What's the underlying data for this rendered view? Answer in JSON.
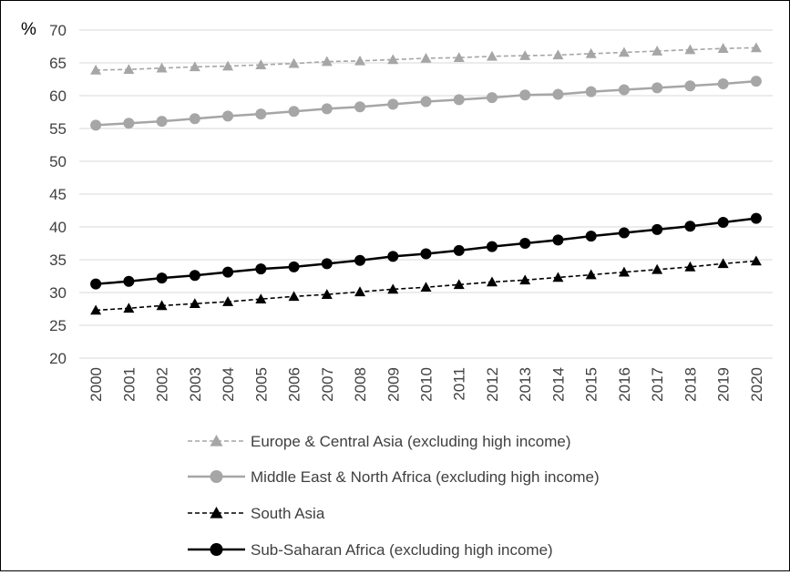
{
  "chart_data": {
    "type": "line",
    "title": "",
    "ylabel": "%",
    "xlabel": "",
    "ylim": [
      20,
      70
    ],
    "yticks": [
      20,
      25,
      30,
      35,
      40,
      45,
      50,
      55,
      60,
      65,
      70
    ],
    "grid": "horizontal",
    "legend_position": "bottom",
    "x": [
      "2000",
      "2001",
      "2002",
      "2003",
      "2004",
      "2005",
      "2006",
      "2007",
      "2008",
      "2009",
      "2010",
      "2011",
      "2012",
      "2013",
      "2014",
      "2015",
      "2016",
      "2017",
      "2018",
      "2019",
      "2020"
    ],
    "series": [
      {
        "name": "Europe & Central Asia (excluding high income)",
        "color": "#a6a6a6",
        "line_style": "dashed",
        "marker": "triangle",
        "values": [
          63.9,
          64.0,
          64.2,
          64.4,
          64.5,
          64.7,
          64.9,
          65.2,
          65.3,
          65.5,
          65.7,
          65.8,
          66.0,
          66.1,
          66.2,
          66.4,
          66.6,
          66.8,
          67.0,
          67.2,
          67.3
        ]
      },
      {
        "name": "Middle East & North Africa (excluding high income)",
        "color": "#a6a6a6",
        "line_style": "solid",
        "marker": "circle",
        "values": [
          55.5,
          55.8,
          56.1,
          56.5,
          56.9,
          57.2,
          57.6,
          58.0,
          58.3,
          58.7,
          59.1,
          59.4,
          59.7,
          60.1,
          60.2,
          60.6,
          60.9,
          61.2,
          61.5,
          61.8,
          62.2
        ]
      },
      {
        "name": "South Asia",
        "color": "#000000",
        "line_style": "dashed",
        "marker": "triangle",
        "values": [
          27.3,
          27.6,
          28.0,
          28.3,
          28.6,
          29.0,
          29.4,
          29.7,
          30.1,
          30.5,
          30.8,
          31.2,
          31.6,
          31.9,
          32.3,
          32.7,
          33.1,
          33.5,
          33.9,
          34.4,
          34.8
        ]
      },
      {
        "name": "Sub-Saharan Africa (excluding high income)",
        "color": "#000000",
        "line_style": "solid",
        "marker": "circle",
        "values": [
          31.3,
          31.7,
          32.2,
          32.6,
          33.1,
          33.6,
          33.9,
          34.4,
          34.9,
          35.5,
          35.9,
          36.4,
          37.0,
          37.5,
          38.0,
          38.6,
          39.1,
          39.6,
          40.1,
          40.7,
          41.3
        ]
      }
    ]
  }
}
